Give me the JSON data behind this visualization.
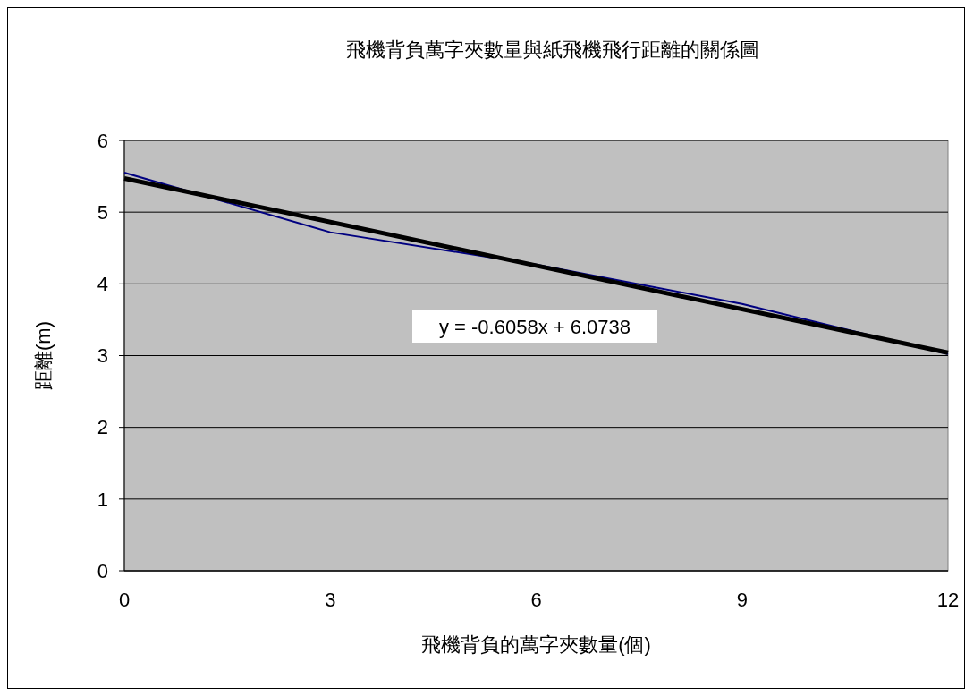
{
  "chart_data": {
    "type": "line",
    "title": "飛機背負萬字夾數量與紙飛機飛行距離的關係圖",
    "xlabel": "飛機背負的萬字夾數量(個)",
    "ylabel": "距離(m)",
    "x": [
      0,
      3,
      6,
      9,
      12
    ],
    "series": [
      {
        "color": "#000080",
        "values": [
          5.55,
          4.72,
          4.27,
          3.72,
          3.02
        ]
      },
      {
        "type": "line",
        "color": "#000000",
        "x": [
          0,
          12
        ],
        "values": [
          5.47,
          3.04
        ]
      }
    ],
    "xlim": [
      0,
      12
    ],
    "xticks": [
      0,
      3,
      6,
      9,
      12
    ],
    "ylim": [
      0,
      6
    ],
    "yticks": [
      0,
      1,
      2,
      3,
      4,
      5,
      6
    ],
    "grid": "y",
    "marker": "none",
    "annotations": [
      "y = -0.6058x + 6.0738"
    ]
  }
}
